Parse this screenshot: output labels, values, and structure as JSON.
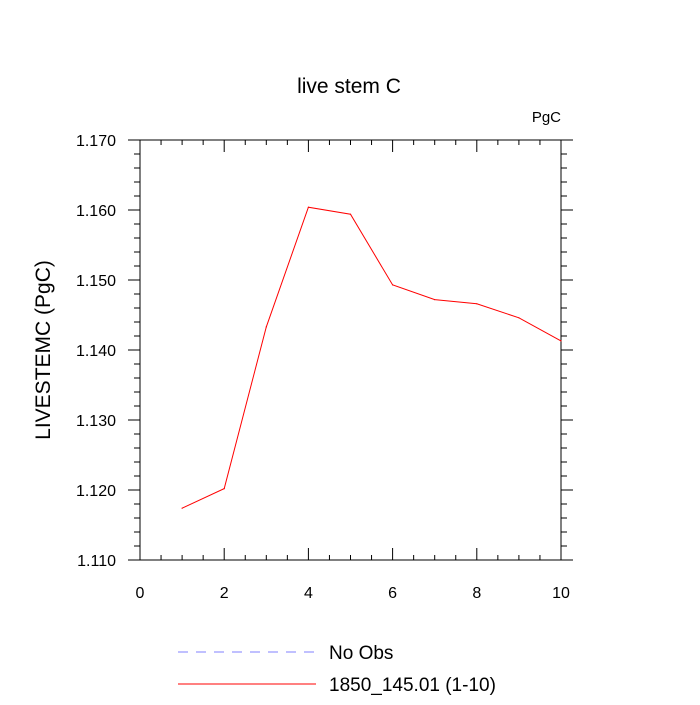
{
  "chart_data": {
    "type": "line",
    "title": "live stem C",
    "subtitle": "PgC",
    "xlabel": "",
    "ylabel": "LIVESTEMC  (PgC)",
    "xlim": [
      0,
      10
    ],
    "ylim": [
      1.11,
      1.17
    ],
    "xticks": [
      0,
      2,
      4,
      6,
      8,
      10
    ],
    "xtick_labels": [
      "0",
      "2",
      "4",
      "6",
      "8",
      "10"
    ],
    "yticks": [
      1.11,
      1.12,
      1.13,
      1.14,
      1.15,
      1.16,
      1.17
    ],
    "ytick_labels": [
      "1.110",
      "1.120",
      "1.130",
      "1.140",
      "1.150",
      "1.160",
      "1.170"
    ],
    "grid": false,
    "legend_position": "bottom",
    "series": [
      {
        "name": "No Obs",
        "color": "#8080ff",
        "dashed": true,
        "x": [],
        "values": []
      },
      {
        "name": "1850_145.01 (1-10)",
        "color": "#ff0000",
        "dashed": false,
        "x": [
          1,
          2,
          3,
          4,
          5,
          6,
          7,
          8,
          9,
          10
        ],
        "values": [
          1.1174,
          1.1202,
          1.1433,
          1.1604,
          1.1594,
          1.1493,
          1.1472,
          1.1466,
          1.1446,
          1.1413
        ]
      }
    ]
  }
}
